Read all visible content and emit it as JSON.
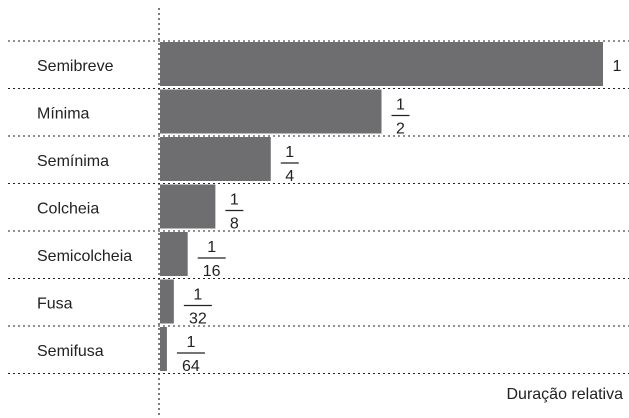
{
  "chart_data": {
    "type": "bar",
    "orientation": "horizontal",
    "categories": [
      "Semibreve",
      "Mínima",
      "Semínima",
      "Colcheia",
      "Semicolcheia",
      "Fusa",
      "Semifusa"
    ],
    "values": [
      1,
      0.5,
      0.25,
      0.125,
      0.0625,
      0.03125,
      0.015625
    ],
    "value_labels": [
      {
        "text": "1"
      },
      {
        "num": "1",
        "den": "2"
      },
      {
        "num": "1",
        "den": "4"
      },
      {
        "num": "1",
        "den": "8"
      },
      {
        "num": "1",
        "den": "16"
      },
      {
        "num": "1",
        "den": "32"
      },
      {
        "num": "1",
        "den": "64"
      }
    ],
    "xlabel": "Duração relativa",
    "xlim": [
      0,
      1
    ],
    "grid": "dotted row separators",
    "bar_color": "#6e6e70"
  }
}
